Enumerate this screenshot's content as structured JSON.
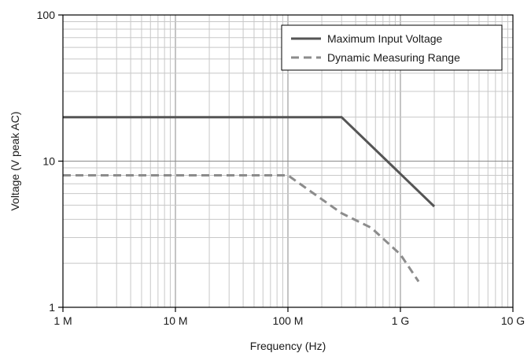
{
  "chart_data": {
    "type": "line",
    "title": "",
    "xlabel": "Frequency (Hz)",
    "ylabel": "Voltage (V peak AC)",
    "x_scale": "log",
    "y_scale": "log",
    "xlim": [
      1000000,
      10000000000
    ],
    "ylim": [
      1,
      100
    ],
    "x_ticks": [
      {
        "value": 1000000,
        "label": "1 M"
      },
      {
        "value": 10000000,
        "label": "10 M"
      },
      {
        "value": 100000000,
        "label": "100 M"
      },
      {
        "value": 1000000000,
        "label": "1 G"
      },
      {
        "value": 10000000000,
        "label": "10 G"
      }
    ],
    "y_ticks": [
      {
        "value": 1,
        "label": "1"
      },
      {
        "value": 10,
        "label": "10"
      },
      {
        "value": 100,
        "label": "100"
      }
    ],
    "grid": true,
    "legend_position": "top-right",
    "series": [
      {
        "name": "Maximum Input Voltage",
        "color": "#555555",
        "style": "solid",
        "points": [
          {
            "x": 1000000,
            "y": 20
          },
          {
            "x": 300000000,
            "y": 20
          },
          {
            "x": 2000000000,
            "y": 4.9
          }
        ]
      },
      {
        "name": "Dynamic Measuring Range",
        "color": "#8c8c8c",
        "style": "dashed",
        "points": [
          {
            "x": 1000000,
            "y": 8
          },
          {
            "x": 100000000,
            "y": 8
          },
          {
            "x": 300000000,
            "y": 4.4
          },
          {
            "x": 550000000,
            "y": 3.5
          },
          {
            "x": 1000000000,
            "y": 2.3
          },
          {
            "x": 1450000000,
            "y": 1.5
          }
        ]
      }
    ]
  }
}
